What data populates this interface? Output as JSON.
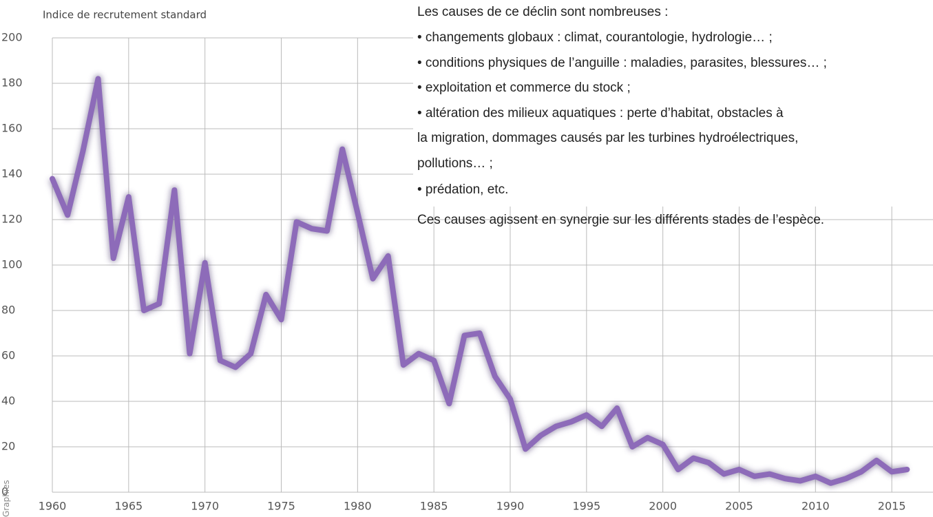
{
  "chart_data": {
    "type": "line",
    "y_label": "Indice de recrutement standard",
    "x": [
      1960,
      1961,
      1962,
      1963,
      1964,
      1965,
      1966,
      1967,
      1968,
      1969,
      1970,
      1971,
      1972,
      1973,
      1974,
      1975,
      1976,
      1977,
      1978,
      1979,
      1980,
      1981,
      1982,
      1983,
      1984,
      1985,
      1986,
      1987,
      1988,
      1989,
      1990,
      1991,
      1992,
      1993,
      1994,
      1995,
      1996,
      1997,
      1998,
      1999,
      2000,
      2001,
      2002,
      2003,
      2004,
      2005,
      2006,
      2007,
      2008,
      2009,
      2010,
      2011,
      2012,
      2013,
      2014,
      2015,
      2016
    ],
    "values": [
      138,
      122,
      150,
      182,
      103,
      130,
      80,
      83,
      133,
      61,
      101,
      58,
      55,
      61,
      87,
      76,
      119,
      116,
      115,
      151,
      123,
      94,
      104,
      56,
      61,
      58,
      39,
      69,
      70,
      51,
      41,
      19,
      25,
      29,
      31,
      34,
      29,
      37,
      20,
      24,
      21,
      10,
      15,
      13,
      8,
      10,
      7,
      8,
      6,
      5,
      7,
      4,
      6,
      9,
      14,
      9,
      10
    ],
    "color": "#8d6bb9",
    "xlim": [
      1960,
      2017.7
    ],
    "xticks": [
      1960,
      1965,
      1970,
      1975,
      1980,
      1985,
      1990,
      1995,
      2000,
      2005,
      2010,
      2015
    ],
    "ylim": [
      0,
      200
    ],
    "yticks": [
      0,
      20,
      40,
      60,
      80,
      100,
      120,
      140,
      160,
      180,
      200
    ],
    "grid": true
  },
  "text": {
    "lines": [
      "Les causes de ce déclin sont nombreuses :",
      "• changements globaux : climat, courantologie, hydrologie… ;",
      "• conditions physiques de l’anguille : maladies, parasites, blessures… ;",
      "• exploitation et commerce du stock ;",
      "• altération des milieux aquatiques : perte d’habitat, obstacles à",
      "la migration, dommages causés par les turbines hydroélectriques,",
      "pollutions… ;",
      "• prédation, etc.",
      "Ces causes agissent en synergie sur les différents stades de l’espèce."
    ]
  },
  "credit": "Graphies"
}
